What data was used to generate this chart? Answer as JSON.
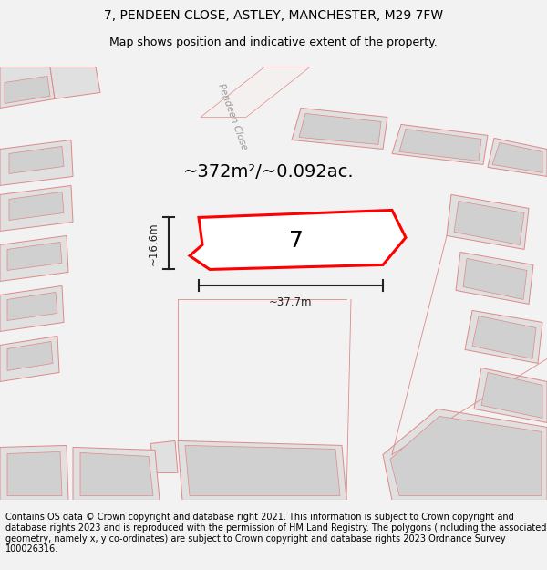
{
  "title_line1": "7, PENDEEN CLOSE, ASTLEY, MANCHESTER, M29 7FW",
  "title_line2": "Map shows position and indicative extent of the property.",
  "area_text": "~372m²/~0.092ac.",
  "width_label": "~37.7m",
  "height_label": "~16.6m",
  "house_number": "7",
  "footer_text": "Contains OS data © Crown copyright and database right 2021. This information is subject to Crown copyright and database rights 2023 and is reproduced with the permission of HM Land Registry. The polygons (including the associated geometry, namely x, y co-ordinates) are subject to Crown copyright and database rights 2023 Ordnance Survey 100026316.",
  "bg_color": "#f2f2f2",
  "map_bg": "#ffffff",
  "plot_color": "#ff0000",
  "gray_fill": "#e0e0e0",
  "pink_edge": "#e08888",
  "title_fontsize": 10,
  "subtitle_fontsize": 9,
  "footer_fontsize": 7,
  "road_label_color": "#999999",
  "dim_color": "#222222",
  "number_fontsize": 18,
  "area_fontsize": 14
}
